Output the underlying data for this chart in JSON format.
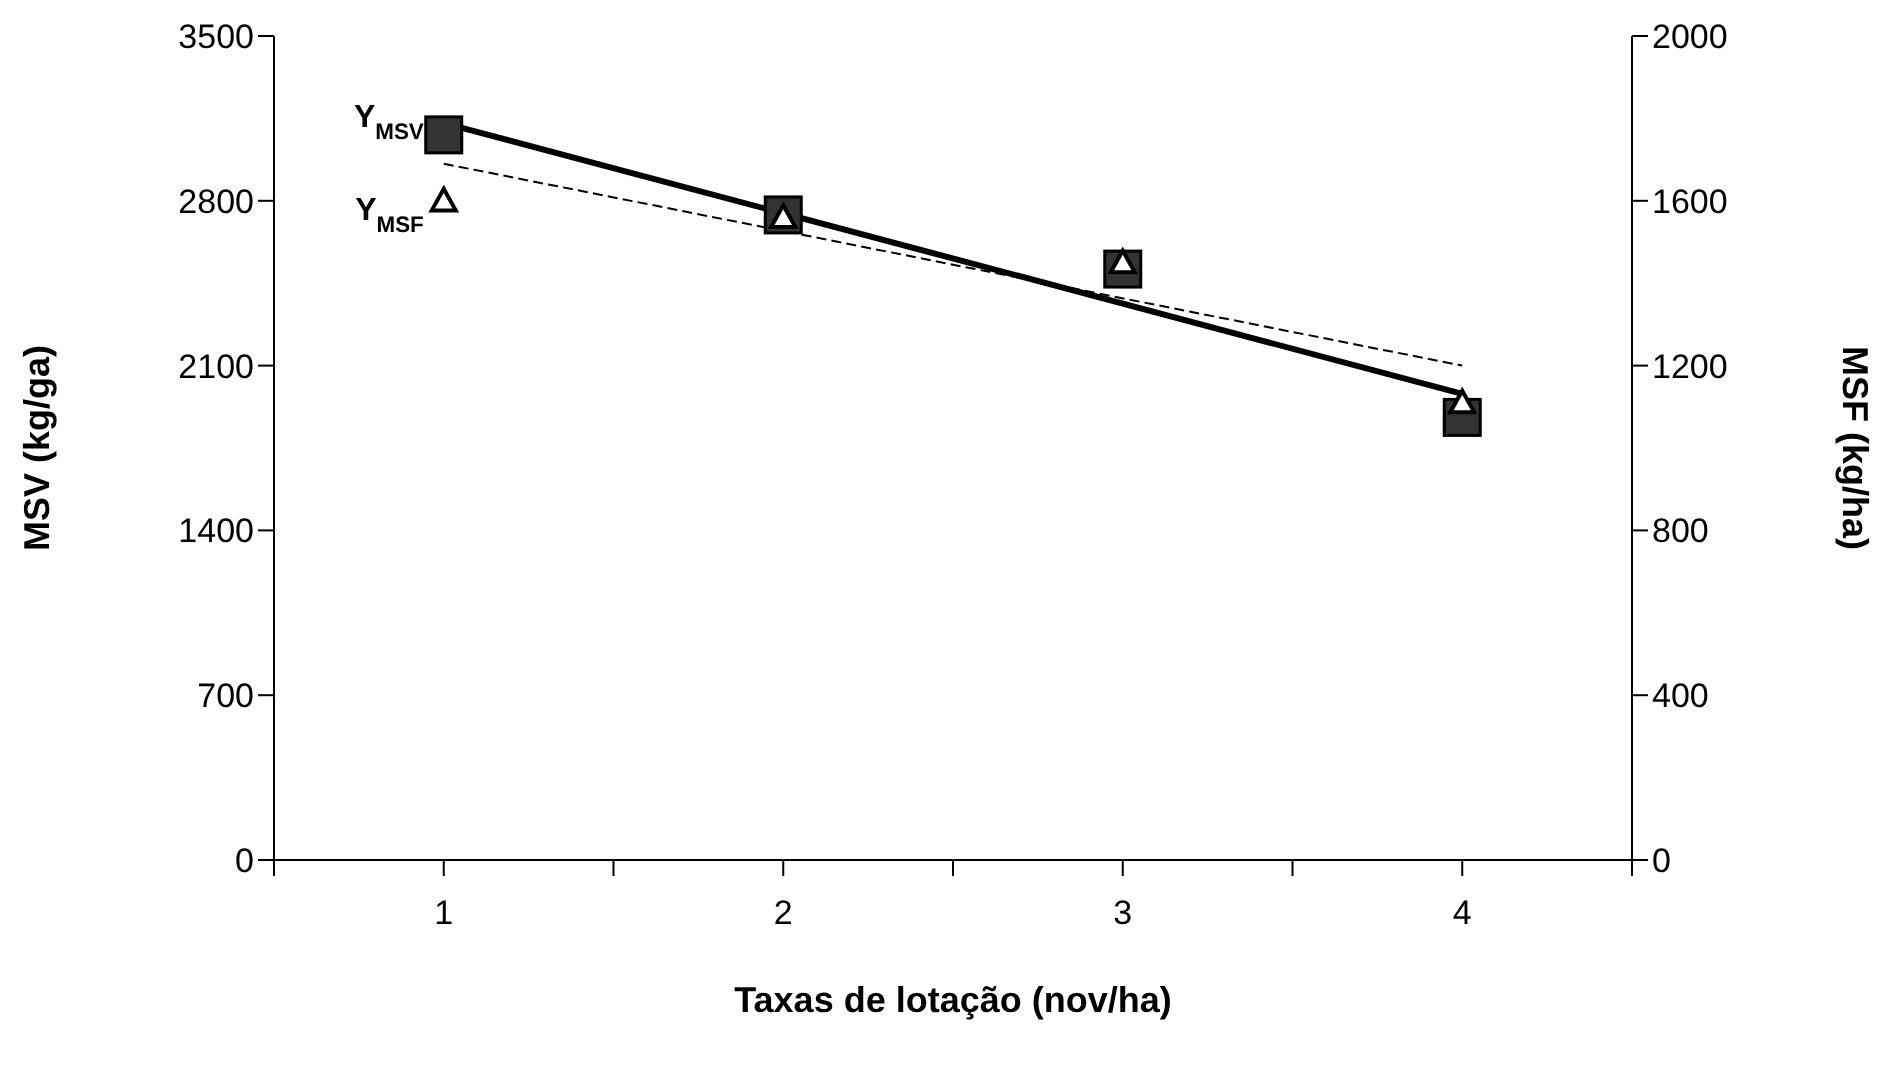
{
  "chart_data": {
    "type": "scatter",
    "xlabel": "Taxas de lotação (nov/ha)",
    "ylabel": "MSV (kg/ga)",
    "y2label": "MSF (kg/ha)",
    "xlim": [
      0.5,
      4.5
    ],
    "xticks": [
      {
        "value": 0.5,
        "label": null
      },
      1,
      {
        "value": 1.5,
        "label": null
      },
      2,
      {
        "value": 2.5,
        "label": null
      },
      3,
      {
        "value": 3.5,
        "label": null
      },
      4,
      {
        "value": 4.5,
        "label": null
      }
    ],
    "ylim": [
      0,
      3500
    ],
    "yticks": [
      0,
      700,
      1400,
      2100,
      2800,
      3500
    ],
    "y2lim": [
      0,
      2000
    ],
    "y2ticks": [
      0,
      400,
      800,
      1200,
      1600,
      2000
    ],
    "grid": false,
    "legend": false,
    "series": [
      {
        "axis": "y",
        "marker": "square",
        "color": "#333333",
        "x": [
          1,
          2,
          3,
          4
        ],
        "values": [
          3080,
          2740,
          2510,
          1880
        ]
      },
      {
        "axis": "y2",
        "marker": "triangle",
        "color": "#ffffff",
        "x": [
          1,
          2,
          3,
          4
        ],
        "values": [
          1600,
          1560,
          1450,
          1110
        ]
      },
      {
        "type": "line",
        "name": "Y$_{MSV}$",
        "axis": "y",
        "marker": "none",
        "line_style": "solid",
        "color": "#000000",
        "x": [
          1,
          4
        ],
        "values": [
          3130,
          1980
        ]
      },
      {
        "type": "line",
        "name": "Y$_{MSF}$",
        "axis": "y2",
        "marker": "none",
        "line_style": "dashed",
        "color": "#000000",
        "x": [
          1,
          4
        ],
        "values": [
          1690,
          1200
        ]
      }
    ]
  }
}
